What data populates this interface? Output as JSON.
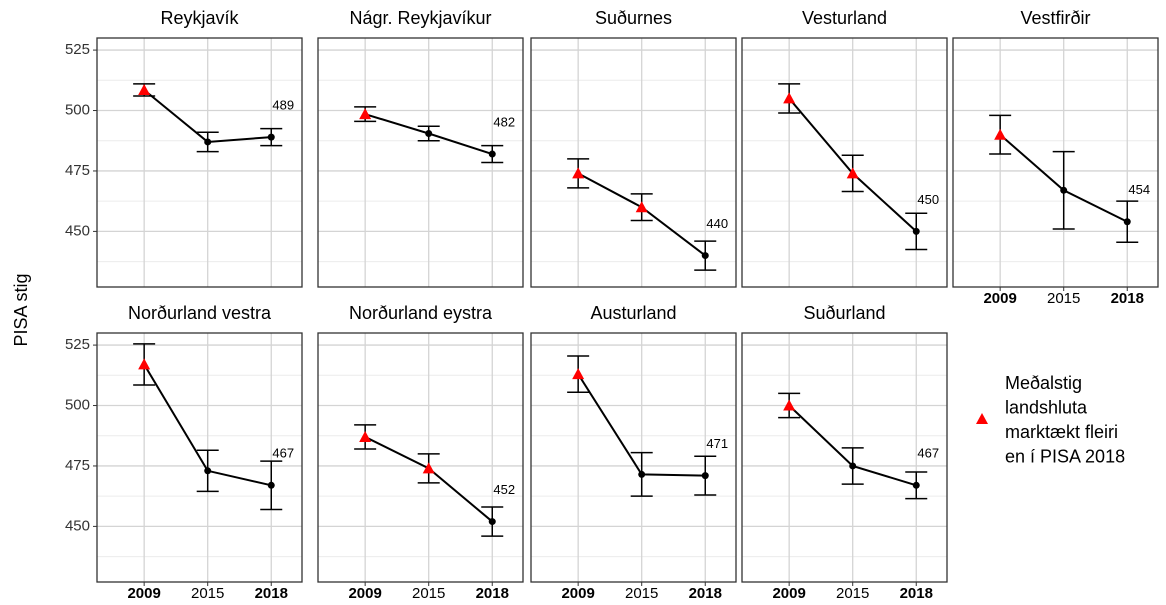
{
  "ylabel": "PISA stig",
  "legend": {
    "lines": [
      "Meðalstig",
      "landshluta",
      "marktækt fleiri",
      "en í PISA 2018"
    ],
    "color": "#ff0000"
  },
  "chart_data": [
    {
      "type": "line",
      "title": "Reykjavík",
      "categories": [
        "2009",
        "2015",
        "2018"
      ],
      "values": [
        508.5,
        487,
        489
      ],
      "errors": [
        2.5,
        4,
        3.5
      ],
      "significant": [
        true,
        false,
        false
      ],
      "ylim": [
        427,
        530
      ],
      "yticks": [
        450,
        475,
        500,
        525
      ],
      "yminor": [
        437.5,
        462.5,
        487.5,
        512.5
      ],
      "grid": true,
      "color": "#000000",
      "highlight_color": "#ff0000"
    },
    {
      "type": "line",
      "title": "Nágr. Reykjavíkur",
      "categories": [
        "2009",
        "2015",
        "2018"
      ],
      "values": [
        498.5,
        490.5,
        482
      ],
      "errors": [
        3,
        3,
        3.5
      ],
      "significant": [
        true,
        false,
        false
      ],
      "ylim": [
        427,
        530
      ],
      "yticks": [
        450,
        475,
        500,
        525
      ],
      "yminor": [
        437.5,
        462.5,
        487.5,
        512.5
      ],
      "grid": true,
      "color": "#000000",
      "highlight_color": "#ff0000"
    },
    {
      "type": "line",
      "title": "Suðurnes",
      "categories": [
        "2009",
        "2015",
        "2018"
      ],
      "values": [
        474,
        460,
        440
      ],
      "errors": [
        6,
        5.5,
        6
      ],
      "significant": [
        true,
        true,
        false
      ],
      "ylim": [
        427,
        530
      ],
      "yticks": [
        450,
        475,
        500,
        525
      ],
      "yminor": [
        437.5,
        462.5,
        487.5,
        512.5
      ],
      "grid": true,
      "color": "#000000",
      "highlight_color": "#ff0000"
    },
    {
      "type": "line",
      "title": "Vesturland",
      "categories": [
        "2009",
        "2015",
        "2018"
      ],
      "values": [
        505,
        474,
        450
      ],
      "errors": [
        6,
        7.5,
        7.5
      ],
      "significant": [
        true,
        true,
        false
      ],
      "ylim": [
        427,
        530
      ],
      "yticks": [
        450,
        475,
        500,
        525
      ],
      "yminor": [
        437.5,
        462.5,
        487.5,
        512.5
      ],
      "grid": true,
      "color": "#000000",
      "highlight_color": "#ff0000"
    },
    {
      "type": "line",
      "title": "Vestfirðir",
      "categories": [
        "2009",
        "2015",
        "2018"
      ],
      "values": [
        490,
        467,
        454
      ],
      "errors": [
        8,
        16,
        8.5
      ],
      "significant": [
        true,
        false,
        false
      ],
      "ylim": [
        427,
        530
      ],
      "yticks": [
        450,
        475,
        500,
        525
      ],
      "yminor": [
        437.5,
        462.5,
        487.5,
        512.5
      ],
      "grid": true,
      "color": "#000000",
      "highlight_color": "#ff0000"
    },
    {
      "type": "line",
      "title": "Norðurland vestra",
      "categories": [
        "2009",
        "2015",
        "2018"
      ],
      "values": [
        517,
        473,
        467
      ],
      "errors": [
        8.5,
        8.5,
        10
      ],
      "significant": [
        true,
        false,
        false
      ],
      "ylim": [
        427,
        530
      ],
      "yticks": [
        450,
        475,
        500,
        525
      ],
      "yminor": [
        437.5,
        462.5,
        487.5,
        512.5
      ],
      "grid": true,
      "color": "#000000",
      "highlight_color": "#ff0000"
    },
    {
      "type": "line",
      "title": "Norðurland eystra",
      "categories": [
        "2009",
        "2015",
        "2018"
      ],
      "values": [
        487,
        474,
        452
      ],
      "errors": [
        5,
        6,
        6
      ],
      "significant": [
        true,
        true,
        false
      ],
      "ylim": [
        427,
        530
      ],
      "yticks": [
        450,
        475,
        500,
        525
      ],
      "yminor": [
        437.5,
        462.5,
        487.5,
        512.5
      ],
      "grid": true,
      "color": "#000000",
      "highlight_color": "#ff0000"
    },
    {
      "type": "line",
      "title": "Austurland",
      "categories": [
        "2009",
        "2015",
        "2018"
      ],
      "values": [
        513,
        471.5,
        471
      ],
      "errors": [
        7.5,
        9,
        8
      ],
      "significant": [
        true,
        false,
        false
      ],
      "ylim": [
        427,
        530
      ],
      "yticks": [
        450,
        475,
        500,
        525
      ],
      "yminor": [
        437.5,
        462.5,
        487.5,
        512.5
      ],
      "grid": true,
      "color": "#000000",
      "highlight_color": "#ff0000"
    },
    {
      "type": "line",
      "title": "Suðurland",
      "categories": [
        "2009",
        "2015",
        "2018"
      ],
      "values": [
        500,
        475,
        467
      ],
      "errors": [
        5,
        7.5,
        5.5
      ],
      "significant": [
        true,
        false,
        false
      ],
      "ylim": [
        427,
        530
      ],
      "yticks": [
        450,
        475,
        500,
        525
      ],
      "yminor": [
        437.5,
        462.5,
        487.5,
        512.5
      ],
      "grid": true,
      "color": "#000000",
      "highlight_color": "#ff0000"
    }
  ]
}
